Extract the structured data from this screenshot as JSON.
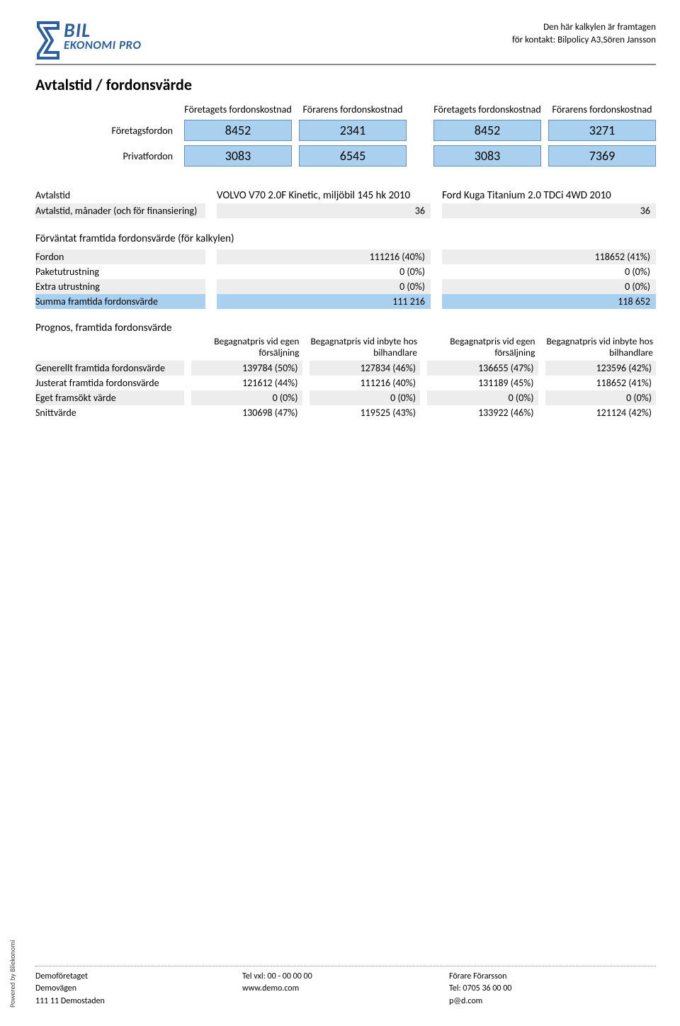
{
  "header": {
    "meta_line1": "Den här kalkylen är framtagen",
    "meta_line2": "för kontakt: Bilpolicy A3,Sören Jansson",
    "logo_text1": "BIL",
    "logo_text2": "EKONOMI PRO"
  },
  "page_title": "Avtalstid / fordonsvärde",
  "cost": {
    "h1": "Företagets fordonskostnad",
    "h2": "Förarens fordonskostnad",
    "h3": "Företagets fordonskostnad",
    "h4": "Förarens fordonskostnad",
    "row1_label": "Företagsfordon",
    "row2_label": "Privatfordon",
    "row1": [
      "8452",
      "2341",
      "8452",
      "3271"
    ],
    "row2": [
      "3083",
      "6545",
      "3083",
      "7369"
    ]
  },
  "avtalstid": {
    "label": "Avtalstid",
    "vehicle1": "VOLVO V70 2.0F Kinetic, miljöbil 145 hk 2010",
    "vehicle2": "Ford Kuga Titanium 2.0 TDCi 4WD 2010",
    "months_label": "Avtalstid, månader (och för finansiering)",
    "months1": "36",
    "months2": "36"
  },
  "forv": {
    "title": "Förväntat framtida fordonsvärde (för kalkylen)",
    "rows": [
      {
        "label": "Fordon",
        "v1": "111216 (40%)",
        "v2": "118652 (41%)",
        "style": "grey"
      },
      {
        "label": "Paketutrustning",
        "v1": "0 (0%)",
        "v2": "0 (0%)",
        "style": ""
      },
      {
        "label": "Extra utrustning",
        "v1": "0 (0%)",
        "v2": "0 (0%)",
        "style": "grey"
      },
      {
        "label": "Summa framtida fordonsvärde",
        "v1": "111 216",
        "v2": "118 652",
        "style": "blue"
      }
    ]
  },
  "prognos": {
    "title": "Prognos, framtida fordonsvärde",
    "headers": [
      "Begagnatpris vid egen försäljning",
      "Begagnatpris vid inbyte hos bilhandlare",
      "Begagnatpris vid egen försäljning",
      "Begagnatpris vid inbyte hos bilhandlare"
    ],
    "rows": [
      {
        "label": "Generellt framtida fordonsvärde",
        "cells": [
          "139784 (50%)",
          "127834 (46%)",
          "136655 (47%)",
          "123596 (42%)"
        ],
        "style": "grey"
      },
      {
        "label": "Justerat framtida fordonsvärde",
        "cells": [
          "121612 (44%)",
          "111216 (40%)",
          "131189 (45%)",
          "118652 (41%)"
        ],
        "style": ""
      },
      {
        "label": "Eget framsökt värde",
        "cells": [
          "0 (0%)",
          "0 (0%)",
          "0 (0%)",
          "0 (0%)"
        ],
        "style": "grey"
      },
      {
        "label": "Snittvärde",
        "cells": [
          "130698 (47%)",
          "119525 (43%)",
          "133922 (46%)",
          "121124 (42%)"
        ],
        "style": ""
      }
    ]
  },
  "footer": {
    "powered": "Powered by Bilekonomi",
    "col1": [
      "Demoföretaget",
      "Demovägen",
      "111 11 Demostaden"
    ],
    "col2": [
      "Tel vxl: 00 - 00 00 00",
      "www.demo.com"
    ],
    "col3": [
      "Förare Förarsson",
      "Tel: 0705 36 00 00",
      "p@d.com"
    ]
  },
  "colors": {
    "box_bg": "#aad0ef",
    "box_border": "#6a8fb5",
    "row_grey": "#ededed",
    "logo_blue": "#2d5f9e"
  }
}
